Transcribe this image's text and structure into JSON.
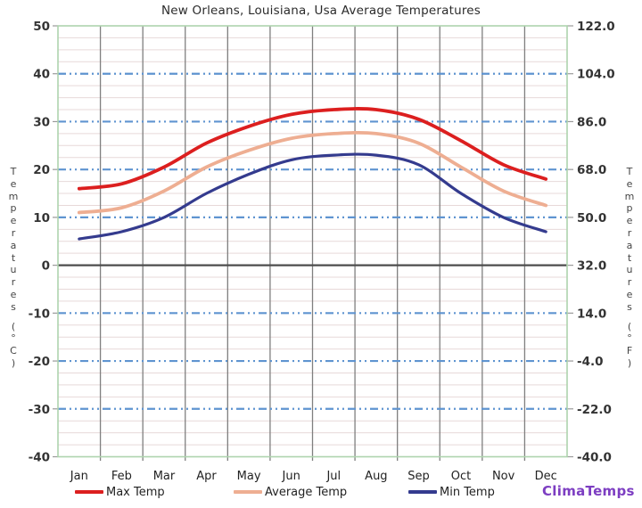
{
  "chart_data": {
    "type": "line",
    "title": "New Orleans, Louisiana, Usa Average Temperatures",
    "categories": [
      "Jan",
      "Feb",
      "Mar",
      "Apr",
      "May",
      "Jun",
      "Jul",
      "Aug",
      "Sep",
      "Oct",
      "Nov",
      "Dec"
    ],
    "series": [
      {
        "name": "Max Temp",
        "color": "#dc1f1f",
        "width": 3.8,
        "values": [
          16,
          17,
          20.5,
          25.5,
          29,
          31.5,
          32.5,
          32.5,
          30.5,
          26,
          21,
          18
        ]
      },
      {
        "name": "Average Temp",
        "color": "#e username925e2",
        "width": 3.8,
        "values": [
          11,
          12,
          15.5,
          20.5,
          24,
          26.5,
          27.5,
          27.5,
          25.5,
          20.5,
          15.5,
          12.5
        ]
      },
      {
        "name": "Min Temp",
        "color": "#343b8e",
        "width": 3.2,
        "values": [
          5.5,
          7,
          10,
          15,
          19,
          22,
          23,
          23,
          21,
          15,
          10,
          7
        ]
      }
    ],
    "y_axis_left": {
      "label": "Temperatures (°C)",
      "ticks": [
        50,
        40,
        30,
        20,
        10,
        0,
        -10,
        -20,
        -30,
        -40
      ]
    },
    "y_axis_right": {
      "label": "Temperatures (°F)",
      "tick_labels": [
        "122.0",
        "104.0",
        "86.0",
        "68.0",
        "50.0",
        "32.0",
        "14.0",
        "-4.0",
        "-22.0",
        "-40.0"
      ]
    },
    "ylim": [
      -40,
      50
    ],
    "grid": {
      "horizontal_major": "blue dash-dot",
      "minor_step_c": 2.5,
      "vertical": "month boundaries"
    },
    "legend_position": "bottom"
  },
  "colors": {
    "grid_major_dashed": "#5f94d0",
    "grid_minor": "#e7d9d9",
    "grid_vertical": "#7f7f7f",
    "zero_line": "#4d4d4d",
    "plot_border": "#aed4ae",
    "tick_text": "#333333",
    "month_text": "#222222",
    "watermark": "#7d3ec2"
  },
  "watermark": {
    "text": "ClimaTemps"
  }
}
